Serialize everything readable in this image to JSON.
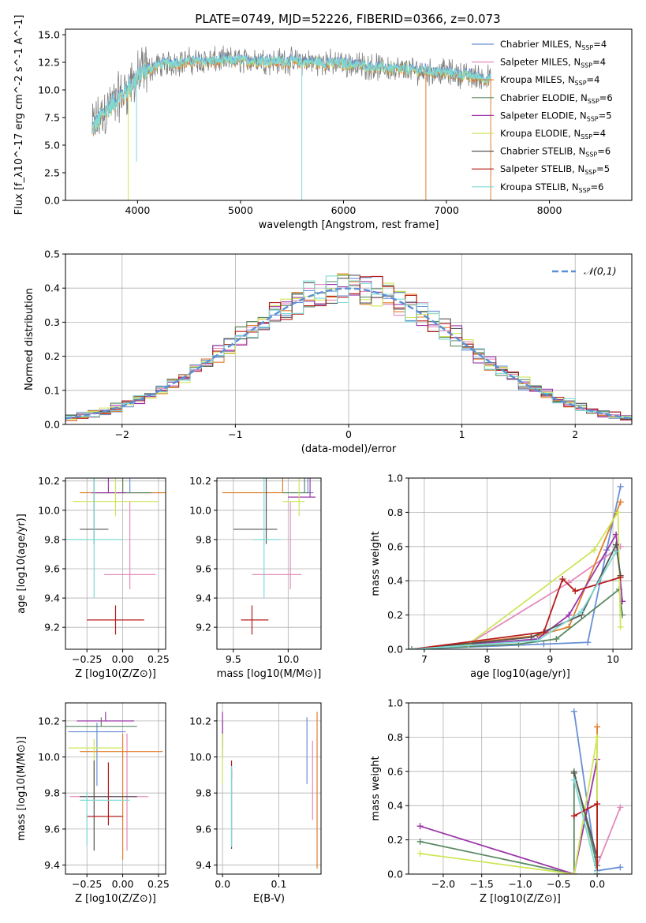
{
  "figure": {
    "title": "PLATE=0749, MJD=52226, FIBERID=0366, z=0.073"
  },
  "series": [
    {
      "name": "Chabrier MILES",
      "lib": "MILES",
      "imf": "Chabrier",
      "nssp": "4",
      "color": "#6a8fd6"
    },
    {
      "name": "Salpeter MILES",
      "lib": "MILES",
      "imf": "Salpeter",
      "nssp": "4",
      "color": "#e48bbb"
    },
    {
      "name": "Kroupa MILES",
      "lib": "MILES",
      "imf": "Kroupa",
      "nssp": "4",
      "color": "#e07d2a"
    },
    {
      "name": "Chabrier ELODIE",
      "lib": "ELODIE",
      "imf": "Chabrier",
      "nssp": "6",
      "color": "#5a8a63"
    },
    {
      "name": "Salpeter ELODIE",
      "lib": "ELODIE",
      "imf": "Salpeter",
      "nssp": "5",
      "color": "#9b37a8"
    },
    {
      "name": "Kroupa ELODIE",
      "lib": "ELODIE",
      "imf": "Kroupa",
      "nssp": "4",
      "color": "#cfe65a"
    },
    {
      "name": "Chabrier STELIB",
      "lib": "STELIB",
      "imf": "Chabrier",
      "nssp": "6",
      "color": "#555555"
    },
    {
      "name": "Salpeter STELIB",
      "lib": "STELIB",
      "imf": "Salpeter",
      "nssp": "5",
      "color": "#b51c1c"
    },
    {
      "name": "Kroupa STELIB",
      "lib": "STELIB",
      "imf": "Kroupa",
      "nssp": "6",
      "color": "#7fdad4"
    }
  ],
  "legend_nssp_prefix": "N",
  "legend_nssp_sub": "SSP",
  "chart_data": [
    {
      "id": "spectrum",
      "type": "line",
      "title": "PLATE=0749, MJD=52226, FIBERID=0366, z=0.073",
      "xlabel": "wavelength [Angstrom, rest frame]",
      "ylabel": "Flux [f_λ10^-17 erg cm^-2 s^-1 A^-1]",
      "xlim": [
        3300,
        8800
      ],
      "ylim": [
        0,
        15.5
      ],
      "xticks": [
        4000,
        5000,
        6000,
        7000,
        8000
      ],
      "yticks": [
        0.0,
        2.5,
        5.0,
        7.5,
        10.0,
        12.5,
        15.0
      ],
      "x_range": [
        3560,
        7430
      ],
      "data_color": "#808080",
      "model_color": "#7fdad4",
      "continuum": [
        [
          3560,
          6.5
        ],
        [
          3700,
          8.2
        ],
        [
          3900,
          10.0
        ],
        [
          4050,
          11.6
        ],
        [
          4200,
          12.3
        ],
        [
          4500,
          12.6
        ],
        [
          5000,
          12.7
        ],
        [
          5500,
          12.6
        ],
        [
          6000,
          12.4
        ],
        [
          6500,
          11.9
        ],
        [
          7000,
          11.6
        ],
        [
          7430,
          11.0
        ]
      ],
      "spikes": [
        [
          3910,
          0
        ],
        [
          3990,
          3.5
        ],
        [
          5595,
          0
        ],
        [
          6800,
          0
        ],
        [
          7430,
          0
        ]
      ],
      "legend_position": "upper-right"
    },
    {
      "id": "residuals",
      "type": "histogram",
      "xlabel": "(data-model)/error",
      "ylabel": "Normed distribution",
      "xlim": [
        -2.5,
        2.5
      ],
      "ylim": [
        0,
        0.5
      ],
      "xticks": [
        -2,
        -1,
        0,
        1,
        2
      ],
      "yticks": [
        0.0,
        0.1,
        0.2,
        0.3,
        0.4,
        0.5
      ],
      "grid": true,
      "bin_width": 0.1,
      "reference_curve": {
        "label": "𝒩(0,1)",
        "mean": 0,
        "sigma": 1,
        "color": "#5b8fd6"
      },
      "legend_position": "upper-right"
    },
    {
      "id": "age_vs_Z",
      "type": "errorbar",
      "xlabel": "Z [log10(Z/Z⊙)]",
      "ylabel": "age [log10(age/yr)]",
      "xlim": [
        -0.4,
        0.3
      ],
      "ylim": [
        9.05,
        10.22
      ],
      "xticks": [
        -0.25,
        0.0,
        0.25
      ],
      "yticks": [
        9.2,
        9.4,
        9.6,
        9.8,
        10.0,
        10.2
      ],
      "grid": true,
      "points": [
        {
          "x": 0.05,
          "y": 10.12,
          "x_err": [
            0.22,
            0.22
          ],
          "y_err": [
            0.0,
            0.1
          ]
        },
        {
          "x": 0.05,
          "y": 9.56,
          "x_err": [
            0.18,
            0.18
          ],
          "y_err": [
            0.1,
            0.5
          ]
        },
        {
          "x": 0.0,
          "y": 10.12,
          "x_err": [
            0.3,
            0.3
          ],
          "y_err": [
            0.0,
            1.0
          ]
        },
        {
          "x": 0.0,
          "y": 10.12,
          "x_err": [
            0.2,
            0.2
          ],
          "y_err": [
            0.0,
            0.9
          ]
        },
        {
          "x": -0.1,
          "y": 10.12,
          "x_err": [
            0.12,
            0.12
          ],
          "y_err": [
            0.0,
            0.9
          ]
        },
        {
          "x": -0.05,
          "y": 10.06,
          "x_err": [
            0.3,
            0.3
          ],
          "y_err": [
            0.1,
            0.9
          ]
        },
        {
          "x": -0.2,
          "y": 9.87,
          "x_err": [
            0.1,
            0.1
          ],
          "y_err": [
            0.1,
            0.7
          ]
        },
        {
          "x": -0.05,
          "y": 9.25,
          "x_err": [
            0.2,
            0.2
          ],
          "y_err": [
            0.1,
            0.1
          ]
        },
        {
          "x": -0.2,
          "y": 9.8,
          "x_err": [
            0.2,
            0.2
          ],
          "y_err": [
            0.4,
            0.6
          ]
        }
      ]
    },
    {
      "id": "age_vs_mass",
      "type": "errorbar",
      "xlabel": "mass [log10(M/M⊙)]",
      "ylabel": "",
      "xlim": [
        9.35,
        10.3
      ],
      "ylim": [
        9.05,
        10.22
      ],
      "xticks": [
        9.5,
        10.0
      ],
      "yticks": [
        9.2,
        9.4,
        9.6,
        9.8,
        10.0,
        10.2
      ],
      "grid": true,
      "points": [
        {
          "x": 10.18,
          "y": 10.12,
          "x_err": [
            0.15,
            0.05
          ],
          "y_err": [
            0.0,
            0.1
          ]
        },
        {
          "x": 10.02,
          "y": 9.56,
          "x_err": [
            0.35,
            0.1
          ],
          "y_err": [
            0.1,
            0.5
          ]
        },
        {
          "x": 9.95,
          "y": 10.12,
          "x_err": [
            0.55,
            0.1
          ],
          "y_err": [
            0.0,
            1.0
          ]
        },
        {
          "x": 10.15,
          "y": 10.12,
          "x_err": [
            0.2,
            0.05
          ],
          "y_err": [
            0.0,
            0.9
          ]
        },
        {
          "x": 10.2,
          "y": 10.09,
          "x_err": [
            0.2,
            0.05
          ],
          "y_err": [
            0.0,
            0.9
          ]
        },
        {
          "x": 10.1,
          "y": 10.06,
          "x_err": [
            0.15,
            0.05
          ],
          "y_err": [
            0.1,
            0.9
          ]
        },
        {
          "x": 9.8,
          "y": 9.87,
          "x_err": [
            0.3,
            0.1
          ],
          "y_err": [
            0.1,
            0.7
          ]
        },
        {
          "x": 9.67,
          "y": 9.25,
          "x_err": [
            0.1,
            0.15
          ],
          "y_err": [
            0.1,
            0.1
          ]
        },
        {
          "x": 9.78,
          "y": 9.8,
          "x_err": [
            0.1,
            0.15
          ],
          "y_err": [
            0.4,
            0.6
          ]
        }
      ]
    },
    {
      "id": "massweight_vs_age",
      "type": "line",
      "xlabel": "age [log10(age/yr)]",
      "ylabel": "mass weight",
      "xlim": [
        6.75,
        10.3
      ],
      "ylim": [
        0,
        1.0
      ],
      "xticks": [
        7,
        8,
        9,
        10
      ],
      "yticks": [
        0.0,
        0.2,
        0.4,
        0.6,
        0.8,
        1.0
      ],
      "grid": true,
      "lines": [
        [
          [
            6.8,
            0.0
          ],
          [
            8.9,
            0.03
          ],
          [
            9.6,
            0.04
          ],
          [
            9.9,
            0.58
          ],
          [
            10.12,
            0.95
          ]
        ],
        [
          [
            6.8,
            0.0
          ],
          [
            7.7,
            0.03
          ],
          [
            9.3,
            0.39
          ],
          [
            10.12,
            0.6
          ]
        ],
        [
          [
            6.8,
            0.0
          ],
          [
            8.8,
            0.08
          ],
          [
            9.3,
            0.13
          ],
          [
            10.12,
            0.86
          ]
        ],
        [
          [
            6.8,
            0.0
          ],
          [
            8.5,
            0.03
          ],
          [
            9.1,
            0.06
          ],
          [
            10.1,
            0.35
          ],
          [
            10.15,
            0.2
          ]
        ],
        [
          [
            6.8,
            0.0
          ],
          [
            8.8,
            0.06
          ],
          [
            9.3,
            0.2
          ],
          [
            10.05,
            0.67
          ],
          [
            10.15,
            0.28
          ]
        ],
        [
          [
            6.8,
            0.0
          ],
          [
            7.7,
            0.03
          ],
          [
            9.7,
            0.58
          ],
          [
            10.08,
            0.8
          ],
          [
            10.12,
            0.13
          ]
        ],
        [
          [
            6.8,
            0.0
          ],
          [
            8.7,
            0.07
          ],
          [
            9.5,
            0.2
          ],
          [
            10.05,
            0.61
          ],
          [
            10.12,
            0.43
          ]
        ],
        [
          [
            6.8,
            0.0
          ],
          [
            8.9,
            0.1
          ],
          [
            9.2,
            0.41
          ],
          [
            9.4,
            0.34
          ],
          [
            10.12,
            0.42
          ]
        ],
        [
          [
            6.8,
            0.0
          ],
          [
            8.8,
            0.05
          ],
          [
            9.5,
            0.22
          ],
          [
            10.05,
            0.57
          ]
        ]
      ]
    },
    {
      "id": "mass_vs_Z",
      "type": "errorbar",
      "xlabel": "Z [log10(Z/Z⊙)]",
      "ylabel": "mass [log10(M/M⊙)]",
      "xlim": [
        -0.4,
        0.3
      ],
      "ylim": [
        9.35,
        10.3
      ],
      "xticks": [
        -0.25,
        0.0,
        0.25
      ],
      "yticks": [
        9.4,
        9.6,
        9.8,
        10.0,
        10.2
      ],
      "grid": true,
      "points": [
        {
          "x": -0.18,
          "y": 10.14,
          "x_err": [
            0.2,
            0.2
          ],
          "y_err": [
            0.3,
            0.05
          ]
        },
        {
          "x": 0.03,
          "y": 9.78,
          "x_err": [
            0.4,
            0.15
          ],
          "y_err": [
            0.3,
            0.35
          ]
        },
        {
          "x": 0.0,
          "y": 10.03,
          "x_err": [
            0.3,
            0.28
          ],
          "y_err": [
            0.6,
            0.1
          ]
        },
        {
          "x": -0.15,
          "y": 10.17,
          "x_err": [
            0.25,
            0.25
          ],
          "y_err": [
            0.0,
            0.05
          ]
        },
        {
          "x": -0.12,
          "y": 10.2,
          "x_err": [
            0.2,
            0.2
          ],
          "y_err": [
            0.0,
            0.05
          ]
        },
        {
          "x": -0.2,
          "y": 10.05,
          "x_err": [
            0.18,
            0.2
          ],
          "y_err": [
            0.3,
            0.05
          ]
        },
        {
          "x": -0.2,
          "y": 9.78,
          "x_err": [
            0.1,
            0.3
          ],
          "y_err": [
            0.3,
            0.2
          ]
        },
        {
          "x": -0.1,
          "y": 9.67,
          "x_err": [
            0.15,
            0.1
          ],
          "y_err": [
            0.05,
            0.3
          ]
        },
        {
          "x": -0.25,
          "y": 9.76,
          "x_err": [
            0.05,
            0.3
          ],
          "y_err": [
            0.25,
            0.05
          ]
        }
      ]
    },
    {
      "id": "mass_vs_EBV",
      "type": "errorbar",
      "xlabel": "E(B-V)",
      "ylabel": "",
      "xlim": [
        -0.01,
        0.175
      ],
      "ylim": [
        9.35,
        10.3
      ],
      "xticks": [
        0.0,
        0.1
      ],
      "yticks": [
        9.4,
        9.6,
        9.8,
        10.0,
        10.2
      ],
      "grid": true,
      "points": [
        {
          "x": 0.15,
          "y": 10.03,
          "x_err": [
            0,
            0
          ],
          "y_err": [
            0.18,
            0.19
          ]
        },
        {
          "x": 0.16,
          "y": 9.87,
          "x_err": [
            0,
            0
          ],
          "y_err": [
            0.22,
            0.22
          ]
        },
        {
          "x": 0.168,
          "y": 9.82,
          "x_err": [
            0,
            0
          ],
          "y_err": [
            0.44,
            0.43
          ]
        },
        {
          "x": 0.0,
          "y": 10.1,
          "x_err": [
            0,
            0
          ],
          "y_err": [
            0.1,
            0.1
          ]
        },
        {
          "x": 0.0,
          "y": 10.15,
          "x_err": [
            0,
            0
          ],
          "y_err": [
            0.1,
            0.1
          ]
        },
        {
          "x": 0.0,
          "y": 9.98,
          "x_err": [
            0,
            0
          ],
          "y_err": [
            0.13,
            0.15
          ]
        },
        {
          "x": 0.016,
          "y": 9.73,
          "x_err": [
            0,
            0
          ],
          "y_err": [
            0.24,
            0.2
          ]
        },
        {
          "x": 0.016,
          "y": 9.93,
          "x_err": [
            0,
            0
          ],
          "y_err": [
            0.05,
            0.05
          ]
        },
        {
          "x": 0.016,
          "y": 9.75,
          "x_err": [
            0,
            0
          ],
          "y_err": [
            0.25,
            0.2
          ]
        }
      ]
    },
    {
      "id": "massweight_vs_Z",
      "type": "line",
      "xlabel": "Z [log10(Z/Z⊙)]",
      "ylabel": "mass weight",
      "xlim": [
        -2.45,
        0.45
      ],
      "ylim": [
        0,
        1.0
      ],
      "xticks": [
        -2.0,
        -1.5,
        -1.0,
        -0.5,
        0.0
      ],
      "yticks": [
        0.0,
        0.2,
        0.4,
        0.6,
        0.8,
        1.0
      ],
      "grid": true,
      "lines": [
        [
          [
            -0.3,
            0.95
          ],
          [
            0.0,
            0.02
          ],
          [
            0.3,
            0.04
          ]
        ],
        [
          [
            0.0,
            0.05
          ],
          [
            0.3,
            0.39
          ]
        ],
        [
          [
            0.0,
            0.86
          ],
          [
            0.0,
            0.0
          ]
        ],
        [
          [
            -2.3,
            0.19
          ],
          [
            -0.3,
            0.0
          ],
          [
            -0.3,
            0.6
          ],
          [
            0.0,
            0.05
          ]
        ],
        [
          [
            -2.3,
            0.28
          ],
          [
            -0.3,
            0.0
          ],
          [
            0.0,
            0.67
          ],
          [
            0.0,
            0.0
          ]
        ],
        [
          [
            -2.3,
            0.12
          ],
          [
            -0.3,
            0.0
          ],
          [
            0.0,
            0.8
          ],
          [
            0.0,
            0.0
          ]
        ],
        [
          [
            -0.3,
            0.59
          ],
          [
            0.0,
            0.1
          ]
        ],
        [
          [
            -0.3,
            0.34
          ],
          [
            0.0,
            0.41
          ],
          [
            0.0,
            0.0
          ]
        ],
        [
          [
            -0.3,
            0.55
          ],
          [
            0.0,
            0.0
          ]
        ]
      ]
    }
  ]
}
